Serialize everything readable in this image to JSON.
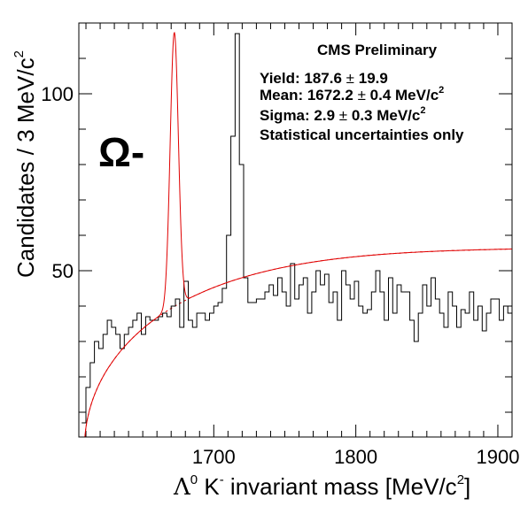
{
  "chart_data": {
    "type": "line",
    "title": "",
    "xlabel_parts": {
      "sym": "Λ",
      "sup0": "0",
      "k": " K",
      "supminus": "-",
      "rest": " invariant mass [MeV/c",
      "sup2": "2",
      "close": "]"
    },
    "ylabel_parts": {
      "main": "Candidates / 3 MeV/c",
      "sup2": "2"
    },
    "xlim": [
      1605,
      1910
    ],
    "ylim": [
      3,
      120
    ],
    "xticks": [
      1700,
      1800,
      1900
    ],
    "yticks": [
      50,
      100
    ],
    "annotations": {
      "cms": "CMS Preliminary",
      "yield_label": "Yield: 187.6",
      "yield_err": "19.9",
      "mean_label": "Mean: 1672.2",
      "mean_err": "0.4 MeV/c",
      "mean_sup": "2",
      "sigma_label": "Sigma: 2.9",
      "sigma_err": "0.3 MeV/c",
      "sigma_sup": "2",
      "stat": "Statistical uncertainties only",
      "pm": "±",
      "particle": "Ω-"
    },
    "histogram": {
      "name": "data",
      "bin_width": 3,
      "x_start": 1607,
      "values": [
        7,
        17,
        24,
        30,
        28,
        32,
        36,
        34,
        32,
        28,
        32,
        34,
        36,
        38,
        32,
        37,
        36,
        36,
        37,
        38,
        37,
        40,
        42,
        34,
        47,
        36,
        34,
        38,
        38,
        36,
        38,
        40,
        41,
        45,
        60,
        88,
        117,
        80,
        48,
        41,
        41,
        42,
        42,
        44,
        46,
        43,
        48,
        44,
        40,
        52,
        42,
        46,
        48,
        38,
        44,
        50,
        46,
        49,
        41,
        44,
        36,
        50,
        46,
        42,
        47,
        40,
        38,
        39,
        44,
        50,
        44,
        36,
        48,
        38,
        46,
        44,
        44,
        36,
        30,
        38,
        46,
        40,
        48,
        42,
        38,
        34,
        44,
        40,
        34,
        39,
        38,
        44,
        36,
        40,
        33,
        38,
        42,
        42,
        36,
        40,
        38,
        40
      ]
    },
    "fit": {
      "name": "total fit",
      "color": "#e00000",
      "background": {
        "threshold": 1609.0,
        "a": 5.7,
        "b": -0.0115,
        "c": 1.1e-05
      },
      "signal": {
        "yield": 187.6,
        "mean": 1672.2,
        "sigma": 2.9
      }
    }
  }
}
